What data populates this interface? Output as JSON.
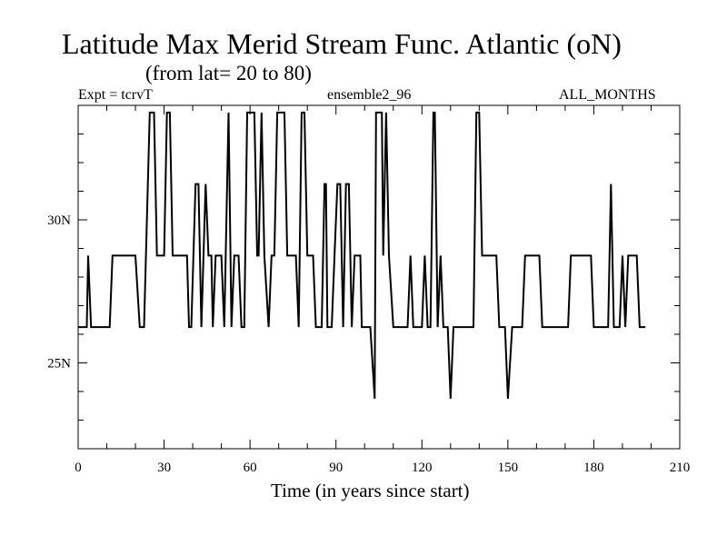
{
  "chart_data": {
    "type": "line",
    "title": "Latitude Max Merid Stream Func. Atlantic (oN)",
    "subtitle": "(from lat= 20 to 80)",
    "annotations": {
      "left": "Expt = tcrvT",
      "center": "ensemble2_96",
      "right": "ALL_MONTHS"
    },
    "xlabel": "Time (in years since start)",
    "ylabel": "",
    "xlim": [
      0,
      210
    ],
    "ylim": [
      22,
      34
    ],
    "xticks": [
      0,
      30,
      60,
      90,
      120,
      150,
      180,
      210
    ],
    "xtick_labels": [
      "0",
      "30",
      "60",
      "90",
      "120",
      "150",
      "180",
      "210"
    ],
    "yticks": [
      25,
      30
    ],
    "ytick_labels": [
      "25N",
      "30N"
    ],
    "series": [
      {
        "values": [
          [
            0,
            26.25
          ],
          [
            3,
            26.25
          ],
          [
            3.5,
            28.75
          ],
          [
            4.5,
            26.25
          ],
          [
            11,
            26.25
          ],
          [
            12,
            28.75
          ],
          [
            20,
            28.75
          ],
          [
            21.5,
            26.25
          ],
          [
            23,
            26.25
          ],
          [
            25,
            33.75
          ],
          [
            26.5,
            33.75
          ],
          [
            27.5,
            28.75
          ],
          [
            30,
            28.75
          ],
          [
            31,
            33.75
          ],
          [
            32,
            33.75
          ],
          [
            33,
            28.75
          ],
          [
            38,
            28.75
          ],
          [
            38.7,
            26.25
          ],
          [
            39.5,
            26.25
          ],
          [
            41,
            31.25
          ],
          [
            42,
            31.25
          ],
          [
            43,
            26.25
          ],
          [
            44.5,
            31.25
          ],
          [
            45.5,
            28.75
          ],
          [
            46.5,
            28.75
          ],
          [
            47,
            26.25
          ],
          [
            48,
            28.75
          ],
          [
            50,
            28.75
          ],
          [
            51,
            26.25
          ],
          [
            52.5,
            33.75
          ],
          [
            53.5,
            26.25
          ],
          [
            54.5,
            28.75
          ],
          [
            56,
            28.75
          ],
          [
            57,
            26.25
          ],
          [
            58,
            26.25
          ],
          [
            59,
            33.75
          ],
          [
            61.5,
            33.75
          ],
          [
            62.5,
            28.75
          ],
          [
            63,
            28.75
          ],
          [
            64,
            33.75
          ],
          [
            65,
            28.75
          ],
          [
            66.5,
            26.25
          ],
          [
            67.5,
            28.75
          ],
          [
            68.5,
            28.75
          ],
          [
            69.5,
            33.75
          ],
          [
            72,
            33.75
          ],
          [
            73,
            28.75
          ],
          [
            76,
            28.75
          ],
          [
            77,
            26.25
          ],
          [
            78,
            33.75
          ],
          [
            79,
            33.75
          ],
          [
            80,
            28.75
          ],
          [
            82,
            28.75
          ],
          [
            83,
            26.25
          ],
          [
            85,
            26.25
          ],
          [
            86,
            31.25
          ],
          [
            86.5,
            31.25
          ],
          [
            87,
            26.25
          ],
          [
            88.5,
            26.25
          ],
          [
            89.5,
            28.75
          ],
          [
            90.5,
            31.25
          ],
          [
            91.5,
            31.25
          ],
          [
            92.5,
            26.25
          ],
          [
            93.5,
            31.25
          ],
          [
            94.5,
            31.25
          ],
          [
            95.5,
            26.25
          ],
          [
            96.5,
            28.75
          ],
          [
            98.5,
            28.75
          ],
          [
            99,
            26.25
          ],
          [
            102,
            26.25
          ],
          [
            103.5,
            23.75
          ],
          [
            104,
            33.75
          ],
          [
            106,
            33.75
          ],
          [
            106.5,
            28.75
          ],
          [
            107,
            31.25
          ],
          [
            107.5,
            33.75
          ],
          [
            108.5,
            28.75
          ],
          [
            110,
            26.25
          ],
          [
            115,
            26.25
          ],
          [
            116,
            28.75
          ],
          [
            117,
            26.25
          ],
          [
            120,
            26.25
          ],
          [
            121,
            28.75
          ],
          [
            122,
            26.25
          ],
          [
            123,
            26.25
          ],
          [
            124,
            33.75
          ],
          [
            124.5,
            33.75
          ],
          [
            125.5,
            26.25
          ],
          [
            126.5,
            28.75
          ],
          [
            127.5,
            26.25
          ],
          [
            129,
            26.25
          ],
          [
            130,
            23.75
          ],
          [
            131,
            26.25
          ],
          [
            138,
            26.25
          ],
          [
            139,
            33.75
          ],
          [
            140,
            33.75
          ],
          [
            141,
            28.75
          ],
          [
            146,
            28.75
          ],
          [
            147,
            26.25
          ],
          [
            149,
            26.25
          ],
          [
            150,
            23.75
          ],
          [
            151.5,
            26.25
          ],
          [
            155,
            26.25
          ],
          [
            156,
            28.75
          ],
          [
            161,
            28.75
          ],
          [
            162,
            26.25
          ],
          [
            171,
            26.25
          ],
          [
            172,
            28.75
          ],
          [
            179,
            28.75
          ],
          [
            180,
            26.25
          ],
          [
            185,
            26.25
          ],
          [
            186,
            31.25
          ],
          [
            187,
            26.25
          ],
          [
            189,
            26.25
          ],
          [
            190,
            28.75
          ],
          [
            191,
            26.25
          ],
          [
            192,
            28.75
          ],
          [
            195,
            28.75
          ],
          [
            196,
            26.25
          ],
          [
            198,
            26.25
          ]
        ]
      }
    ],
    "grid": false,
    "legend": "none",
    "line_color": "#000000"
  }
}
